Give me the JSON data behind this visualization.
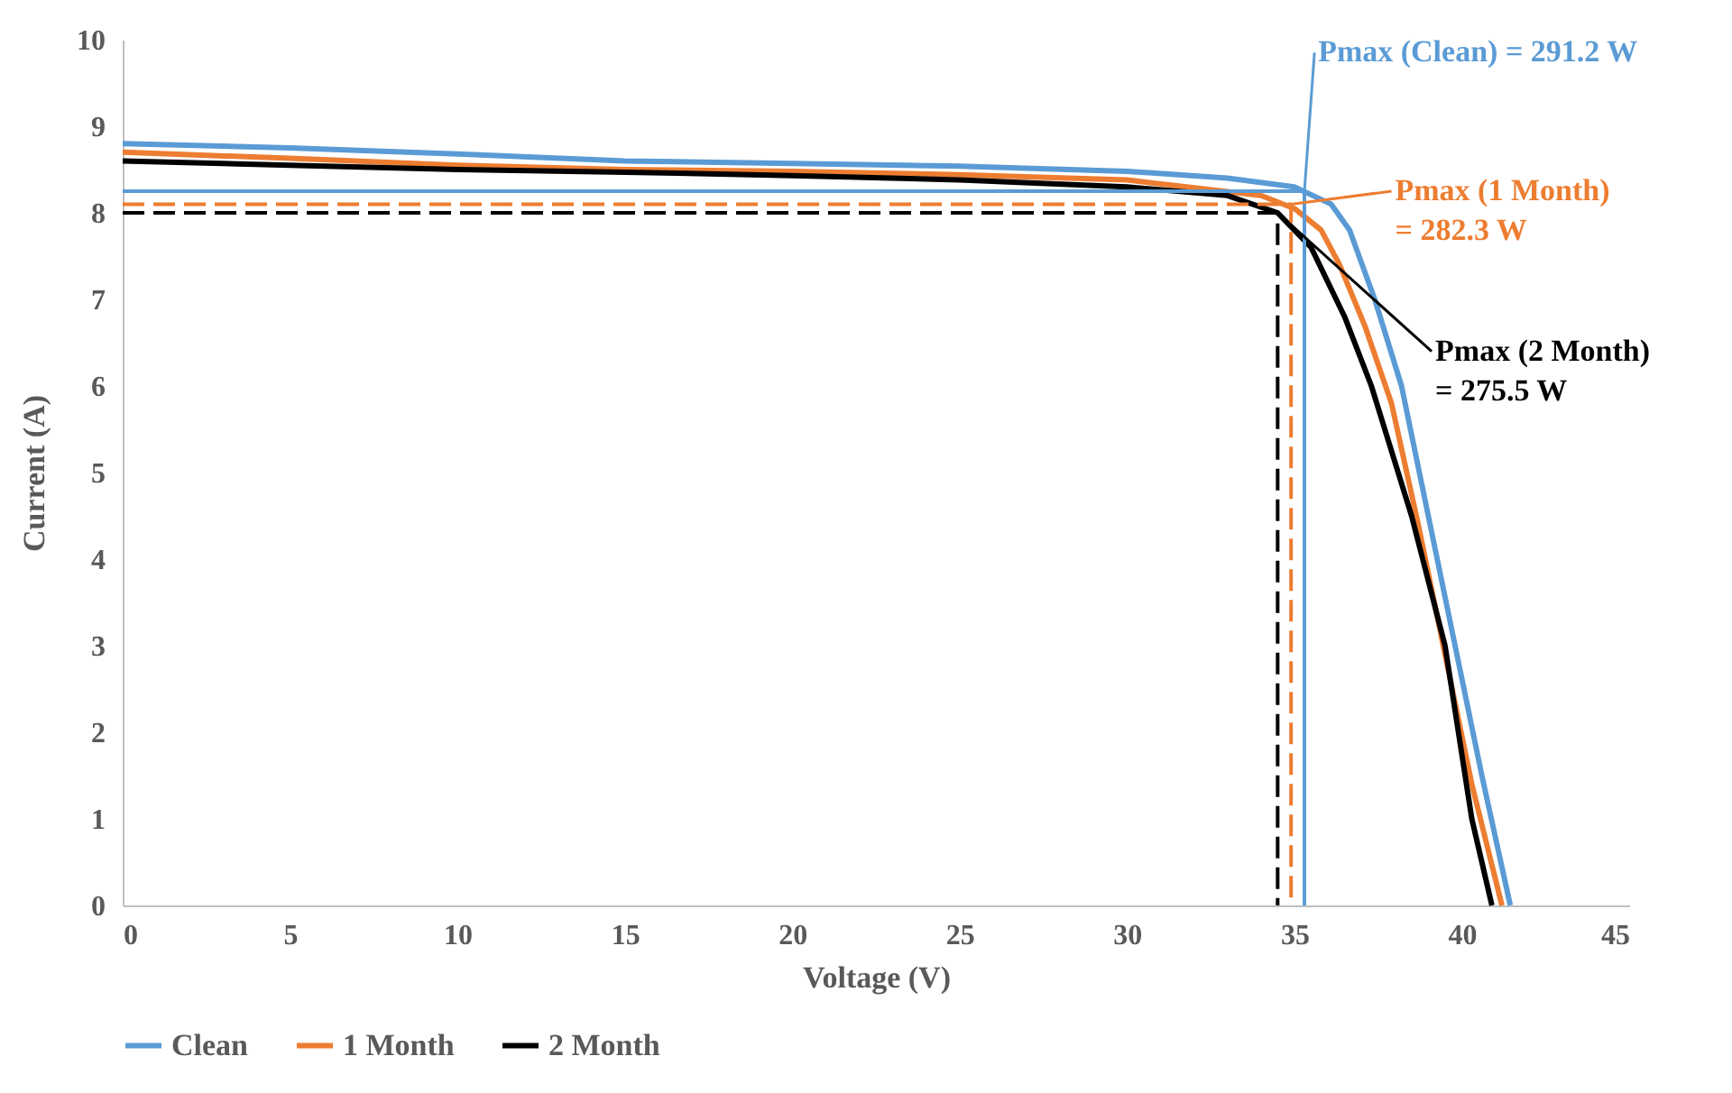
{
  "chart_data": {
    "type": "line",
    "xlabel": "Voltage (V)",
    "ylabel": "Current (A)",
    "xlim": [
      0,
      45
    ],
    "xticks": [
      0,
      5,
      10,
      15,
      20,
      25,
      30,
      35,
      40,
      45
    ],
    "ylim": [
      0,
      10
    ],
    "yticks": [
      0,
      1,
      2,
      3,
      4,
      5,
      6,
      7,
      8,
      9,
      10
    ],
    "grid": false,
    "legend": "bottom",
    "series": [
      {
        "name": "Clean",
        "color": "#5b9bd5",
        "line_style": "solid",
        "x": [
          0,
          5,
          10,
          15,
          20,
          25,
          30,
          33,
          35,
          36.1,
          36.65,
          37.4,
          38.2,
          39,
          39.8,
          40.6,
          41.45
        ],
        "values": [
          8.8,
          8.75,
          8.68,
          8.6,
          8.57,
          8.54,
          8.48,
          8.4,
          8.3,
          8.1,
          7.8,
          7,
          6,
          4.5,
          3,
          1.5,
          0
        ]
      },
      {
        "name": "1 Month",
        "color": "#ed7d31",
        "line_style": "solid",
        "x": [
          0,
          5,
          10,
          15,
          20,
          25,
          30,
          34,
          35,
          35.8,
          36.35,
          37.1,
          37.9,
          38.7,
          39.5,
          40.3,
          41.2
        ],
        "values": [
          8.7,
          8.63,
          8.55,
          8.5,
          8.48,
          8.44,
          8.38,
          8.2,
          8.05,
          7.8,
          7.4,
          6.7,
          5.8,
          4.4,
          2.9,
          1.4,
          0
        ]
      },
      {
        "name": "2 Month",
        "color": "#000000",
        "line_style": "solid",
        "x": [
          0,
          5,
          10,
          15,
          20,
          25,
          30,
          33,
          34.5,
          35.5,
          36.5,
          37.3,
          38.5,
          39.5,
          40.3,
          40.9
        ],
        "values": [
          8.6,
          8.55,
          8.5,
          8.47,
          8.43,
          8.38,
          8.3,
          8.2,
          8.0,
          7.6,
          6.8,
          6.0,
          4.5,
          3,
          1,
          0
        ]
      },
      {
        "color": "#5b9bd5",
        "line_style": "solid",
        "x": [
          0,
          35.3,
          35.3
        ],
        "values": [
          8.25,
          8.25,
          0
        ]
      },
      {
        "color": "#ed7d31",
        "line_style": "dashed",
        "x": [
          0,
          34.9,
          34.9
        ],
        "values": [
          8.1,
          8.1,
          0
        ]
      },
      {
        "color": "#000000",
        "line_style": "dashed",
        "x": [
          0,
          34.5,
          34.5
        ],
        "values": [
          8.0,
          8.0,
          0
        ]
      }
    ],
    "annotations": [
      {
        "text": "Pmax (Clean) = 291.2 W",
        "x": 35.3,
        "y": 8.25
      },
      {
        "text": "Pmax (1 Month)\n= 282.3 W",
        "x": 34.9,
        "y": 8.1
      },
      {
        "text": "Pmax (2 Month)\n= 275.5 W",
        "x": 34.5,
        "y": 8.0
      }
    ]
  }
}
